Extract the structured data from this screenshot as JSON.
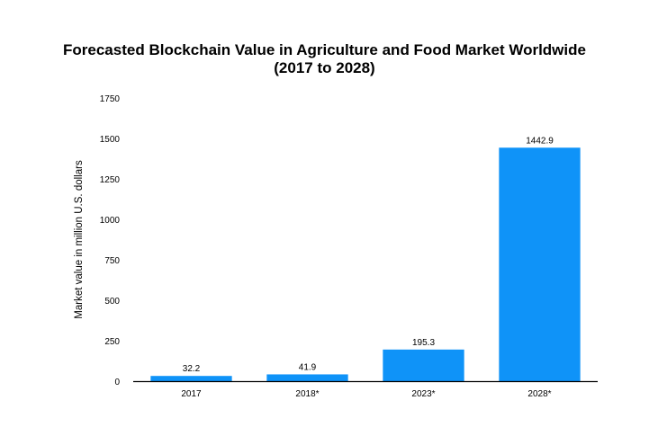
{
  "chart_data": {
    "type": "bar",
    "title_line1": "Forecasted Blockchain Value in Agriculture and Food Market Worldwide",
    "title_line2": "(2017 to 2028)",
    "xlabel": "",
    "ylabel": "Market value in million U.S. dollars",
    "categories": [
      "2017",
      "2018*",
      "2023*",
      "2028*"
    ],
    "values": [
      32.2,
      41.9,
      195.3,
      1442.9
    ],
    "value_labels": [
      "32.2",
      "41.9",
      "195.3",
      "1442.9"
    ],
    "ylim": [
      0,
      1750
    ],
    "yticks": [
      0,
      250,
      500,
      750,
      1000,
      1250,
      1500,
      1750
    ],
    "ytick_labels": [
      "0",
      "250",
      "500",
      "750",
      "1000",
      "1250",
      "1500",
      "1750"
    ],
    "bar_color": "#0f93f8",
    "grid": false,
    "legend": "none"
  }
}
